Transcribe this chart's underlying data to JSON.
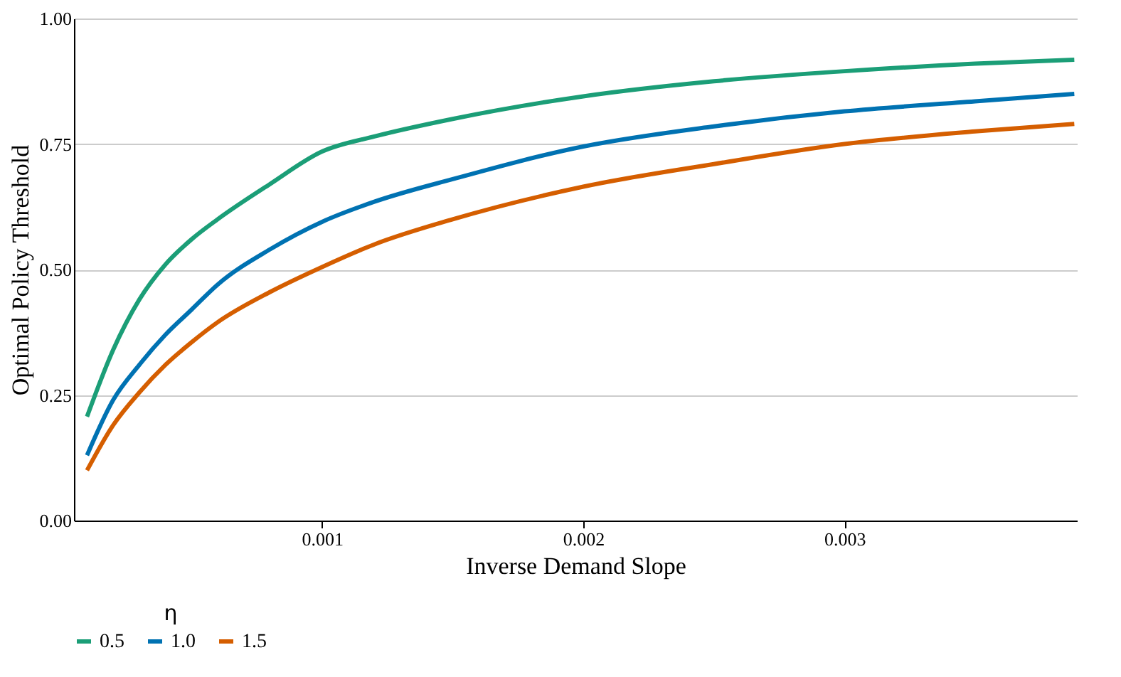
{
  "chart_data": {
    "type": "line",
    "xlabel": "Inverse Demand Slope",
    "ylabel": "Optimal Policy Threshold",
    "legend_title": "η",
    "x": [
      0.0001,
      0.0002,
      0.0003,
      0.0004,
      0.0005,
      0.0006,
      0.0008,
      0.001,
      0.0012,
      0.0015,
      0.002,
      0.0025,
      0.003,
      0.0035,
      0.00388
    ],
    "series": [
      {
        "name": "0.5",
        "color": "#1b9e77",
        "values": [
          0.207,
          0.34,
          0.44,
          0.51,
          0.56,
          0.6,
          0.67,
          0.735,
          0.765,
          0.8,
          0.845,
          0.875,
          0.895,
          0.91,
          0.918
        ]
      },
      {
        "name": "1.0",
        "color": "#0072b2",
        "values": [
          0.13,
          0.24,
          0.31,
          0.37,
          0.42,
          0.47,
          0.54,
          0.595,
          0.635,
          0.68,
          0.745,
          0.785,
          0.815,
          0.835,
          0.85
        ]
      },
      {
        "name": "1.5",
        "color": "#d55e00",
        "values": [
          0.1,
          0.19,
          0.255,
          0.31,
          0.355,
          0.395,
          0.455,
          0.505,
          0.55,
          0.6,
          0.665,
          0.71,
          0.75,
          0.775,
          0.79
        ]
      }
    ],
    "xlim": [
      5e-05,
      0.00389
    ],
    "xticks": [
      0.001,
      0.002,
      0.003
    ],
    "ylim": [
      0,
      1
    ],
    "yticks": [
      {
        "value": 0,
        "label": "0.00"
      },
      {
        "value": 0.25,
        "label": "0.25"
      },
      {
        "value": 0.5,
        "label": "0.50"
      },
      {
        "value": 0.75,
        "label": "0.75"
      },
      {
        "value": 1,
        "label": "1.00"
      }
    ],
    "grid": "y",
    "legend": "bottom",
    "marker": "none",
    "line_style": "solid"
  }
}
